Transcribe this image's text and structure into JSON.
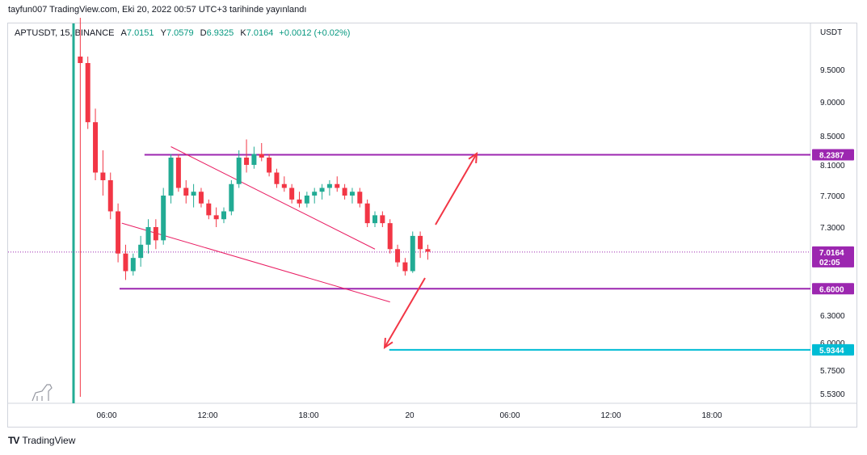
{
  "caption": "tayfun007 TradingView.com, Eki 20, 2022 00:57 UTC+3 tarihinde yayınlandı",
  "legend": {
    "symbol": "APTUSDT, 15, BINANCE",
    "open_label": "A",
    "open": "7.0151",
    "high_label": "Y",
    "high": "7.0579",
    "low_label": "D",
    "low": "6.9325",
    "close_label": "K",
    "close": "7.0164",
    "change": "+0.0012 (+0.02%)"
  },
  "footer": {
    "logo": "TV",
    "brand": "TradingView"
  },
  "colors": {
    "up": "#22ab94",
    "down": "#f23645",
    "purple": "#9c27b0",
    "pink": "#e91e63",
    "arrow": "#f23645",
    "cyan": "#00bcd4",
    "current": "#9c27b0"
  },
  "chart_data": {
    "type": "candlestick",
    "currency": "USDT",
    "y_ticks": [
      "9.5000",
      "9.0000",
      "8.5000",
      "8.1000",
      "7.7000",
      "7.3000",
      "6.3000",
      "6.0000",
      "5.7500",
      "5.5300"
    ],
    "x_ticks": [
      "06:00",
      "12:00",
      "18:00",
      "20",
      "06:00",
      "12:00",
      "18:00"
    ],
    "price_tags": [
      {
        "value": "8.2387",
        "color": "#9c27b0"
      },
      {
        "value": "7.0164",
        "sub": "02:05",
        "color": "#9c27b0"
      },
      {
        "value": "6.6000",
        "color": "#9c27b0"
      },
      {
        "value": "5.9344",
        "color": "#00bcd4"
      }
    ],
    "horizontal_levels": [
      {
        "price": 8.2387,
        "color": "#9c27b0"
      },
      {
        "price": 6.6,
        "color": "#9c27b0"
      },
      {
        "price": 5.9344,
        "color": "#00bcd4"
      }
    ],
    "current_price": 7.0164,
    "candles": [
      [
        9.7,
        10.3,
        5.5,
        9.6
      ],
      [
        9.6,
        9.7,
        8.6,
        8.7
      ],
      [
        8.7,
        8.9,
        7.9,
        8.0
      ],
      [
        8.0,
        8.3,
        7.7,
        7.9
      ],
      [
        7.9,
        8.0,
        7.4,
        7.5
      ],
      [
        7.5,
        7.6,
        6.9,
        7.0
      ],
      [
        7.0,
        7.1,
        6.7,
        6.8
      ],
      [
        6.8,
        7.0,
        6.75,
        6.95
      ],
      [
        6.95,
        7.2,
        6.85,
        7.1
      ],
      [
        7.1,
        7.4,
        7.0,
        7.3
      ],
      [
        7.3,
        7.4,
        7.05,
        7.15
      ],
      [
        7.15,
        7.8,
        7.1,
        7.7
      ],
      [
        7.7,
        8.25,
        7.6,
        8.2
      ],
      [
        8.2,
        8.25,
        7.75,
        7.8
      ],
      [
        7.8,
        7.9,
        7.6,
        7.7
      ],
      [
        7.7,
        7.85,
        7.55,
        7.75
      ],
      [
        7.75,
        7.8,
        7.55,
        7.6
      ],
      [
        7.6,
        7.65,
        7.4,
        7.45
      ],
      [
        7.45,
        7.55,
        7.3,
        7.4
      ],
      [
        7.4,
        7.55,
        7.35,
        7.5
      ],
      [
        7.5,
        7.9,
        7.45,
        7.85
      ],
      [
        7.85,
        8.3,
        7.8,
        8.2
      ],
      [
        8.2,
        8.45,
        8.0,
        8.1
      ],
      [
        8.1,
        8.35,
        8.05,
        8.25
      ],
      [
        8.25,
        8.4,
        8.15,
        8.2
      ],
      [
        8.2,
        8.25,
        7.95,
        8.0
      ],
      [
        8.0,
        8.05,
        7.8,
        7.85
      ],
      [
        7.85,
        7.95,
        7.75,
        7.8
      ],
      [
        7.8,
        7.85,
        7.6,
        7.65
      ],
      [
        7.65,
        7.75,
        7.55,
        7.6
      ],
      [
        7.6,
        7.75,
        7.55,
        7.7
      ],
      [
        7.7,
        7.8,
        7.6,
        7.75
      ],
      [
        7.75,
        7.85,
        7.65,
        7.8
      ],
      [
        7.8,
        7.9,
        7.7,
        7.85
      ],
      [
        7.85,
        7.95,
        7.75,
        7.8
      ],
      [
        7.8,
        7.85,
        7.65,
        7.7
      ],
      [
        7.7,
        7.8,
        7.6,
        7.75
      ],
      [
        7.75,
        7.8,
        7.55,
        7.6
      ],
      [
        7.6,
        7.65,
        7.3,
        7.35
      ],
      [
        7.35,
        7.5,
        7.3,
        7.45
      ],
      [
        7.45,
        7.5,
        7.3,
        7.35
      ],
      [
        7.35,
        7.4,
        7.0,
        7.05
      ],
      [
        7.05,
        7.1,
        6.85,
        6.9
      ],
      [
        6.9,
        6.95,
        6.75,
        6.8
      ],
      [
        6.8,
        7.25,
        6.78,
        7.2
      ],
      [
        7.2,
        7.25,
        6.95,
        7.05
      ],
      [
        7.05,
        7.1,
        6.93,
        7.02
      ]
    ],
    "candle_cols": [
      1,
      2,
      3,
      4,
      5,
      6,
      7,
      8,
      9,
      10,
      11,
      12,
      13,
      14,
      15,
      16,
      17,
      18,
      19,
      20,
      21,
      22,
      23,
      24,
      25,
      26,
      27,
      28,
      29,
      30,
      31,
      32,
      33,
      34,
      35,
      36,
      37,
      38,
      39,
      40,
      41,
      42,
      43,
      44,
      45,
      46,
      47
    ],
    "trendlines": [
      {
        "p1": [
          13.0,
          8.35
        ],
        "p2": [
          40.0,
          7.05
        ]
      },
      {
        "p1": [
          6.5,
          7.35
        ],
        "p2": [
          42.0,
          6.45
        ]
      }
    ]
  }
}
